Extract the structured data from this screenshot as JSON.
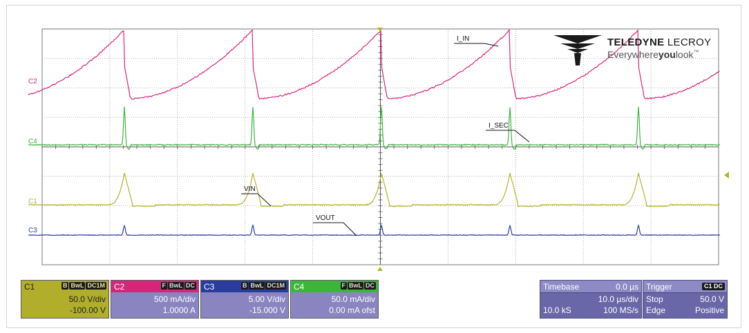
{
  "brand": {
    "name_bold": "TELEDYNE",
    "name_light": " LECROY",
    "tagline_a": "Everywhere",
    "tagline_b": "you",
    "tagline_c": "look",
    "tm": "™"
  },
  "traces": {
    "C2": {
      "label": "C2",
      "color": "#d6267a",
      "annotation": "I_IN"
    },
    "C4": {
      "label": "C4",
      "color": "#3db53d",
      "annotation": "I_SEC"
    },
    "C1": {
      "label": "C1",
      "color": "#b5b22a",
      "annotation": "VIN"
    },
    "C3": {
      "label": "C3",
      "color": "#2a3d9e",
      "annotation": "VOUT"
    }
  },
  "channels": [
    {
      "id": "C1",
      "bg": "#b1ae2c",
      "hdr": "#b1ae2c",
      "tags": [
        "B",
        "BwL",
        "DC1M"
      ],
      "scale": "50.0 V/div",
      "offset": "-100.00 V"
    },
    {
      "id": "C2",
      "bg": "#8a84c0",
      "hdr": "#d6267a",
      "tags": [
        "F",
        "BwL",
        "DC"
      ],
      "scale": "500 mA/div",
      "offset": "1.0000 A"
    },
    {
      "id": "C3",
      "bg": "#8a84c0",
      "hdr": "#2a3d9e",
      "tags": [
        "B",
        "BwL",
        "DC1M"
      ],
      "scale": "5.00 V/div",
      "offset": "-15.000 V"
    },
    {
      "id": "C4",
      "bg": "#8a84c0",
      "hdr": "#3db53d",
      "tags": [
        "F",
        "BwL",
        "DC"
      ],
      "scale": "50.0 mA/div",
      "offset": "0.00 mA ofst"
    }
  ],
  "timebase": {
    "label": "Timebase",
    "delay": "0.0 µs",
    "per_div": "10.0 µs/div",
    "samples": "10.0 kS",
    "rate": "100 MS/s"
  },
  "trigger": {
    "label": "Trigger",
    "source": "C1 DC",
    "mode": "Stop",
    "level": "50.0 V",
    "type": "Edge",
    "slope": "Positive"
  }
}
